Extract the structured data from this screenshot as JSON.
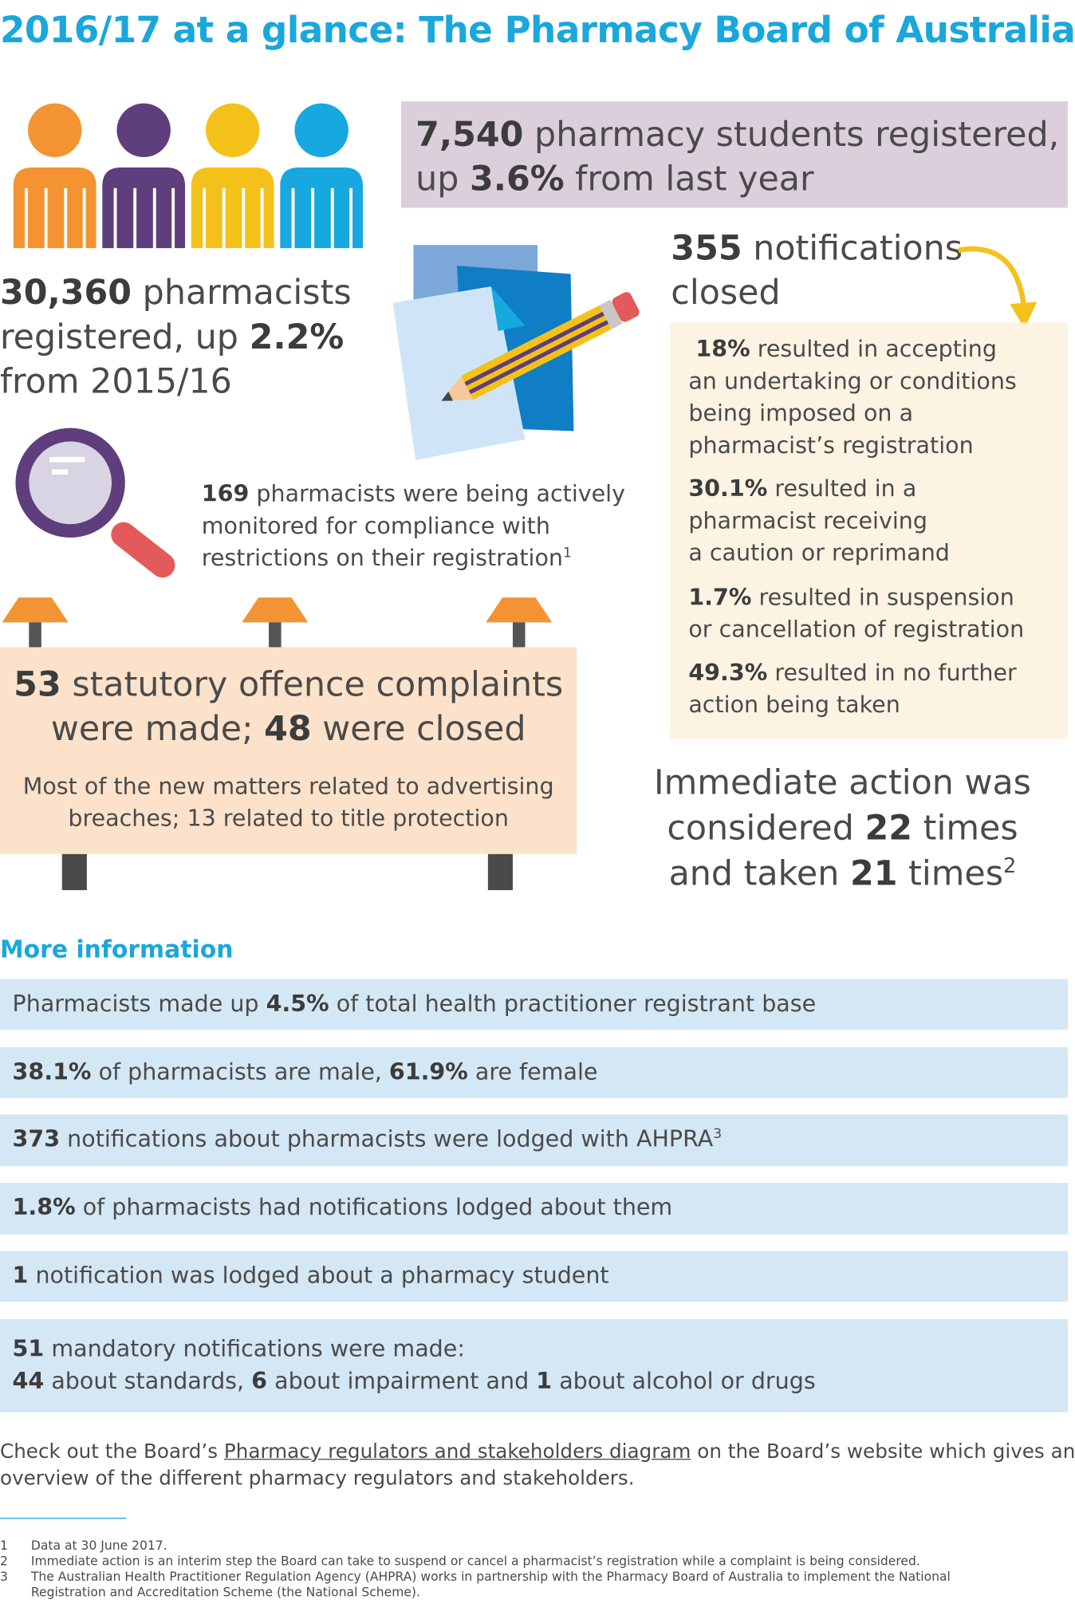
{
  "title": "2016/17 at a glance: The Pharmacy Board of Australia",
  "students": {
    "num": "7,540",
    "text1": "pharmacy students registered,",
    "up": "up",
    "pct": "3.6%",
    "text2": "from last year"
  },
  "pharmacists": {
    "num": "30,360",
    "text1": "pharmacists",
    "text2": "registered, up",
    "pct": "2.2%",
    "text3": "from 2015/16"
  },
  "notifications": {
    "num": "355",
    "text1": "notifications",
    "text2": "closed"
  },
  "outcomes": [
    {
      "pct": "18%",
      "l1": "resulted in accepting",
      "l2": "an undertaking or conditions",
      "l3": "being imposed on a",
      "l4": "pharmacist’s registration"
    },
    {
      "pct": "30.1%",
      "l1": "resulted in a",
      "l2": "pharmacist receiving",
      "l3": "a caution or reprimand"
    },
    {
      "pct": "1.7%",
      "l1": "resulted in suspension",
      "l2": "or cancellation of registration"
    },
    {
      "pct": "49.3%",
      "l1": "resulted in no further",
      "l2": "action being taken"
    }
  ],
  "monitored": {
    "num": "169",
    "l1": "pharmacists were being actively",
    "l2": "monitored for compliance with",
    "l3": "restrictions on their registration",
    "sup": "1"
  },
  "offences": {
    "num1": "53",
    "t1": "statutory offence complaints",
    "t2a": "were made;",
    "num2": "48",
    "t2b": "were closed",
    "s1": "Most of the new matters related to advertising",
    "s2": "breaches; 13 related to title protection"
  },
  "immediate": {
    "l1": "Immediate action was",
    "l2a": "considered",
    "n1": "22",
    "l2b": "times",
    "l3a": "and taken",
    "n2": "21",
    "l3b": "times",
    "sup": "2"
  },
  "more_info": {
    "title": "More information",
    "r1": {
      "a": "Pharmacists made up",
      "b": "4.5%",
      "c": "of total health practitioner registrant base"
    },
    "r2": {
      "a": "38.1%",
      "b": "of pharmacists are male,",
      "c": "61.9%",
      "d": "are female"
    },
    "r3": {
      "a": "373",
      "b": "notifications about pharmacists were lodged with AHPRA",
      "sup": "3"
    },
    "r4": {
      "a": "1.8%",
      "b": "of pharmacists had notifications lodged about them"
    },
    "r5": {
      "a": "1",
      "b": "notification was lodged about a pharmacy student"
    },
    "r6": {
      "a": "51",
      "b": "mandatory notifications were made:",
      "c": "44",
      "d": "about standards,",
      "e": "6",
      "f": "about impairment and",
      "g": "1",
      "h": "about alcohol or drugs"
    }
  },
  "check": {
    "a": "Check out the Board’s",
    "link": "Pharmacy regulators and stakeholders diagram",
    "b": "on the Board’s website which gives an",
    "c": "overview of the different pharmacy regulators and stakeholders."
  },
  "footnotes": [
    {
      "n": "1",
      "t1": "Data at 30 June 2017.",
      "t2": ""
    },
    {
      "n": "2",
      "t1": "Immediate action is an interim step the Board can take to suspend or cancel a pharmacist’s registration while a complaint is being considered.",
      "t2": ""
    },
    {
      "n": "3",
      "t1": "The Australian Health Practitioner Regulation Agency (AHPRA) works in partnership with the Pharmacy Board of Australia to implement the National",
      "t2": "Registration and Accreditation Scheme (the National Scheme)."
    }
  ],
  "colors": {
    "title_blue": "#1aa7dc",
    "orange": "#f39331",
    "purple": "#5e3e7c",
    "yellow": "#f4c11a",
    "blue": "#17a8df",
    "lavender": "#dccfdc",
    "cream": "#fdf3e2",
    "peach": "#fde2cb",
    "info_blue": "#d4e7f5"
  },
  "icons": [
    "person-icon",
    "documents-pencil-icon",
    "magnifier-icon",
    "curved-arrow-icon",
    "lamp-icon"
  ]
}
